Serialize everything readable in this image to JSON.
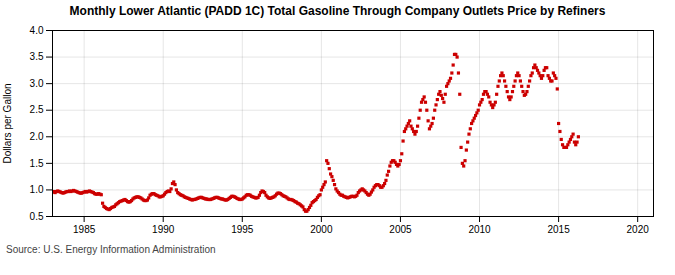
{
  "chart_data": {
    "type": "scatter",
    "title": "Monthly Lower Atlantic (PADD 1C) Total Gasoline Through Company Outlets Price by Refiners",
    "ylabel": "Dollars per Gallon",
    "source": "Source: U.S. Energy Information Administration",
    "color": "#cc0000",
    "marker": "square",
    "grid": true,
    "xlim": [
      1983,
      2021
    ],
    "ylim": [
      0.5,
      4.0
    ],
    "xticks": [
      1985,
      1990,
      1995,
      2000,
      2005,
      2010,
      2015,
      2020
    ],
    "yticks": [
      0.5,
      {
        "value": 1.0,
        "label": "1.0"
      },
      1.5,
      {
        "value": 2.0,
        "label": "2.0"
      },
      2.5,
      {
        "value": 3.0,
        "label": "3.0"
      },
      3.5,
      {
        "value": 4.0,
        "label": "4.0"
      }
    ],
    "x": [
      1983,
      1983.0833333333333,
      1983.1666666666667,
      1983.25,
      1983.3333333333333,
      1983.4166666666667,
      1983.5,
      1983.5833333333333,
      1983.6666666666667,
      1983.75,
      1983.8333333333333,
      1983.9166666666667,
      1984,
      1984.0833333333333,
      1984.1666666666667,
      1984.25,
      1984.3333333333333,
      1984.4166666666667,
      1984.5,
      1984.5833333333333,
      1984.6666666666667,
      1984.75,
      1984.8333333333333,
      1984.9166666666667,
      1985,
      1985.0833333333333,
      1985.1666666666667,
      1985.25,
      1985.3333333333333,
      1985.4166666666667,
      1985.5,
      1985.5833333333333,
      1985.6666666666667,
      1985.75,
      1985.8333333333333,
      1985.9166666666667,
      1986,
      1986.0833333333333,
      1986.1666666666667,
      1986.25,
      1986.3333333333333,
      1986.4166666666667,
      1986.5,
      1986.5833333333333,
      1986.6666666666667,
      1986.75,
      1986.8333333333333,
      1986.9166666666667,
      1987,
      1987.0833333333333,
      1987.1666666666667,
      1987.25,
      1987.3333333333333,
      1987.4166666666667,
      1987.5,
      1987.5833333333333,
      1987.6666666666667,
      1987.75,
      1987.8333333333333,
      1987.9166666666667,
      1988,
      1988.0833333333333,
      1988.1666666666667,
      1988.25,
      1988.3333333333333,
      1988.4166666666667,
      1988.5,
      1988.5833333333333,
      1988.6666666666667,
      1988.75,
      1988.8333333333333,
      1988.9166666666667,
      1989,
      1989.0833333333333,
      1989.1666666666667,
      1989.25,
      1989.3333333333333,
      1989.4166666666667,
      1989.5,
      1989.5833333333333,
      1989.6666666666667,
      1989.75,
      1989.8333333333333,
      1989.9166666666667,
      1990,
      1990.0833333333333,
      1990.1666666666667,
      1990.25,
      1990.3333333333333,
      1990.4166666666667,
      1990.5,
      1990.5833333333333,
      1990.6666666666667,
      1990.75,
      1990.8333333333333,
      1990.9166666666667,
      1991,
      1991.0833333333333,
      1991.1666666666667,
      1991.25,
      1991.3333333333333,
      1991.4166666666667,
      1991.5,
      1991.5833333333333,
      1991.6666666666667,
      1991.75,
      1991.8333333333333,
      1991.9166666666667,
      1992,
      1992.0833333333333,
      1992.1666666666667,
      1992.25,
      1992.3333333333333,
      1992.4166666666667,
      1992.5,
      1992.5833333333333,
      1992.6666666666667,
      1992.75,
      1992.8333333333333,
      1992.9166666666667,
      1993,
      1993.0833333333333,
      1993.1666666666667,
      1993.25,
      1993.3333333333333,
      1993.4166666666667,
      1993.5,
      1993.5833333333333,
      1993.6666666666667,
      1993.75,
      1993.8333333333333,
      1993.9166666666667,
      1994,
      1994.0833333333333,
      1994.1666666666667,
      1994.25,
      1994.3333333333333,
      1994.4166666666667,
      1994.5,
      1994.5833333333333,
      1994.6666666666667,
      1994.75,
      1994.8333333333333,
      1994.9166666666667,
      1995,
      1995.0833333333333,
      1995.1666666666667,
      1995.25,
      1995.3333333333333,
      1995.4166666666667,
      1995.5,
      1995.5833333333333,
      1995.6666666666667,
      1995.75,
      1995.8333333333333,
      1995.9166666666667,
      1996,
      1996.0833333333333,
      1996.1666666666667,
      1996.25,
      1996.3333333333333,
      1996.4166666666667,
      1996.5,
      1996.5833333333333,
      1996.6666666666667,
      1996.75,
      1996.8333333333333,
      1996.9166666666667,
      1997,
      1997.0833333333333,
      1997.1666666666667,
      1997.25,
      1997.3333333333333,
      1997.4166666666667,
      1997.5,
      1997.5833333333333,
      1997.6666666666667,
      1997.75,
      1997.8333333333333,
      1997.9166666666667,
      1998,
      1998.0833333333333,
      1998.1666666666667,
      1998.25,
      1998.3333333333333,
      1998.4166666666667,
      1998.5,
      1998.5833333333333,
      1998.6666666666667,
      1998.75,
      1998.8333333333333,
      1998.9166666666667,
      1999,
      1999.0833333333333,
      1999.1666666666667,
      1999.25,
      1999.3333333333333,
      1999.4166666666667,
      1999.5,
      1999.5833333333333,
      1999.6666666666667,
      1999.75,
      1999.8333333333333,
      1999.9166666666667,
      2000,
      2000.0833333333333,
      2000.1666666666667,
      2000.25,
      2000.3333333333333,
      2000.4166666666667,
      2000.5,
      2000.5833333333333,
      2000.6666666666667,
      2000.75,
      2000.8333333333333,
      2000.9166666666667,
      2001,
      2001.0833333333333,
      2001.1666666666667,
      2001.25,
      2001.3333333333333,
      2001.4166666666667,
      2001.5,
      2001.5833333333333,
      2001.6666666666667,
      2001.75,
      2001.8333333333333,
      2001.9166666666667,
      2002,
      2002.0833333333333,
      2002.1666666666667,
      2002.25,
      2002.3333333333333,
      2002.4166666666667,
      2002.5,
      2002.5833333333333,
      2002.6666666666667,
      2002.75,
      2002.8333333333333,
      2002.9166666666667,
      2003,
      2003.0833333333333,
      2003.1666666666667,
      2003.25,
      2003.3333333333333,
      2003.4166666666667,
      2003.5,
      2003.5833333333333,
      2003.6666666666667,
      2003.75,
      2003.8333333333333,
      2003.9166666666667,
      2004,
      2004.0833333333333,
      2004.1666666666667,
      2004.25,
      2004.3333333333333,
      2004.4166666666667,
      2004.5,
      2004.5833333333333,
      2004.6666666666667,
      2004.75,
      2004.8333333333333,
      2004.9166666666667,
      2005,
      2005.0833333333333,
      2005.1666666666667,
      2005.25,
      2005.3333333333333,
      2005.4166666666667,
      2005.5,
      2005.5833333333333,
      2005.6666666666667,
      2005.75,
      2005.8333333333333,
      2005.9166666666667,
      2006,
      2006.0833333333333,
      2006.1666666666667,
      2006.25,
      2006.3333333333333,
      2006.4166666666667,
      2006.5,
      2006.5833333333333,
      2006.6666666666667,
      2006.75,
      2006.8333333333333,
      2006.9166666666667,
      2007,
      2007.0833333333333,
      2007.1666666666667,
      2007.25,
      2007.3333333333333,
      2007.4166666666667,
      2007.5,
      2007.5833333333333,
      2007.6666666666667,
      2007.75,
      2007.8333333333333,
      2007.9166666666667,
      2008,
      2008.0833333333333,
      2008.1666666666667,
      2008.25,
      2008.3333333333333,
      2008.4166666666667,
      2008.5,
      2008.5833333333333,
      2008.6666666666667,
      2008.75,
      2008.8333333333333,
      2008.9166666666667,
      2009,
      2009.0833333333333,
      2009.1666666666667,
      2009.25,
      2009.3333333333333,
      2009.4166666666667,
      2009.5,
      2009.5833333333333,
      2009.6666666666667,
      2009.75,
      2009.8333333333333,
      2009.9166666666667,
      2010,
      2010.0833333333333,
      2010.1666666666667,
      2010.25,
      2010.3333333333333,
      2010.4166666666667,
      2010.5,
      2010.5833333333333,
      2010.6666666666667,
      2010.75,
      2010.8333333333333,
      2010.9166666666667,
      2011,
      2011.0833333333333,
      2011.1666666666667,
      2011.25,
      2011.3333333333333,
      2011.4166666666667,
      2011.5,
      2011.5833333333333,
      2011.6666666666667,
      2011.75,
      2011.8333333333333,
      2011.9166666666667,
      2012,
      2012.0833333333333,
      2012.1666666666667,
      2012.25,
      2012.3333333333333,
      2012.4166666666667,
      2012.5,
      2012.5833333333333,
      2012.6666666666667,
      2012.75,
      2012.8333333333333,
      2012.9166666666667,
      2013,
      2013.0833333333333,
      2013.1666666666667,
      2013.25,
      2013.3333333333333,
      2013.4166666666667,
      2013.5,
      2013.5833333333333,
      2013.6666666666667,
      2013.75,
      2013.8333333333333,
      2013.9166666666667,
      2014,
      2014.0833333333333,
      2014.1666666666667,
      2014.25,
      2014.3333333333333,
      2014.4166666666667,
      2014.5,
      2014.5833333333333,
      2014.6666666666667,
      2014.75,
      2014.8333333333333,
      2014.9166666666667,
      2015,
      2015.0833333333333,
      2015.1666666666667,
      2015.25,
      2015.3333333333333,
      2015.4166666666667,
      2015.5,
      2015.5833333333333,
      2015.6666666666667,
      2015.75,
      2015.8333333333333,
      2015.9166666666667,
      2016,
      2016.0833333333333,
      2016.1666666666667,
      2016.25
    ],
    "values": [
      0.96,
      0.97,
      0.95,
      0.97,
      0.98,
      0.97,
      0.96,
      0.95,
      0.94,
      0.95,
      0.96,
      0.97,
      0.97,
      0.98,
      0.97,
      0.98,
      0.99,
      0.98,
      0.97,
      0.96,
      0.95,
      0.94,
      0.94,
      0.95,
      0.96,
      0.97,
      0.96,
      0.97,
      0.98,
      0.97,
      0.96,
      0.95,
      0.93,
      0.92,
      0.92,
      0.93,
      0.92,
      0.91,
      0.75,
      0.69,
      0.67,
      0.65,
      0.64,
      0.63,
      0.65,
      0.67,
      0.68,
      0.69,
      0.72,
      0.74,
      0.76,
      0.78,
      0.79,
      0.8,
      0.81,
      0.82,
      0.8,
      0.78,
      0.77,
      0.78,
      0.8,
      0.83,
      0.85,
      0.86,
      0.87,
      0.87,
      0.86,
      0.85,
      0.83,
      0.81,
      0.8,
      0.8,
      0.81,
      0.85,
      0.9,
      0.92,
      0.93,
      0.93,
      0.91,
      0.9,
      0.89,
      0.87,
      0.87,
      0.88,
      0.89,
      0.92,
      0.95,
      0.97,
      0.98,
      0.97,
      1.02,
      1.12,
      1.15,
      1.1,
      1.0,
      0.95,
      0.93,
      0.91,
      0.9,
      0.89,
      0.87,
      0.86,
      0.85,
      0.84,
      0.83,
      0.82,
      0.81,
      0.82,
      0.82,
      0.83,
      0.84,
      0.85,
      0.86,
      0.86,
      0.85,
      0.84,
      0.83,
      0.83,
      0.82,
      0.82,
      0.82,
      0.83,
      0.84,
      0.85,
      0.86,
      0.86,
      0.85,
      0.84,
      0.83,
      0.83,
      0.82,
      0.81,
      0.81,
      0.82,
      0.84,
      0.86,
      0.88,
      0.88,
      0.87,
      0.86,
      0.84,
      0.83,
      0.82,
      0.82,
      0.83,
      0.85,
      0.87,
      0.9,
      0.91,
      0.91,
      0.9,
      0.88,
      0.87,
      0.86,
      0.85,
      0.85,
      0.86,
      0.9,
      0.95,
      0.98,
      0.97,
      0.95,
      0.9,
      0.87,
      0.85,
      0.84,
      0.85,
      0.86,
      0.87,
      0.89,
      0.92,
      0.94,
      0.94,
      0.93,
      0.91,
      0.89,
      0.88,
      0.87,
      0.85,
      0.83,
      0.82,
      0.82,
      0.81,
      0.8,
      0.78,
      0.77,
      0.75,
      0.74,
      0.72,
      0.7,
      0.68,
      0.63,
      0.6,
      0.6,
      0.63,
      0.67,
      0.71,
      0.76,
      0.78,
      0.8,
      0.82,
      0.86,
      0.89,
      0.91,
      1.0,
      1.05,
      1.1,
      1.15,
      1.55,
      1.5,
      1.4,
      1.3,
      1.25,
      1.18,
      1.1,
      1.02,
      0.98,
      0.95,
      0.92,
      0.9,
      0.9,
      0.88,
      0.87,
      0.86,
      0.85,
      0.86,
      0.87,
      0.88,
      0.88,
      0.87,
      0.88,
      0.9,
      0.95,
      0.98,
      1.0,
      1.02,
      1.0,
      0.98,
      0.95,
      0.92,
      0.9,
      0.92,
      0.96,
      1.0,
      1.05,
      1.08,
      1.1,
      1.1,
      1.08,
      1.05,
      1.05,
      1.08,
      1.12,
      1.18,
      1.28,
      1.35,
      1.45,
      1.52,
      1.55,
      1.55,
      1.52,
      1.48,
      1.45,
      1.48,
      1.55,
      1.68,
      1.92,
      2.1,
      2.15,
      2.2,
      2.25,
      2.3,
      2.2,
      2.15,
      2.1,
      2.05,
      2.1,
      2.2,
      2.35,
      2.5,
      2.65,
      2.7,
      2.75,
      2.65,
      2.5,
      2.3,
      2.15,
      2.2,
      2.25,
      2.35,
      2.5,
      2.6,
      2.7,
      2.8,
      2.85,
      2.78,
      2.72,
      2.65,
      2.8,
      2.95,
      3.0,
      3.05,
      3.1,
      3.2,
      3.35,
      3.55,
      3.55,
      3.5,
      3.2,
      2.8,
      1.8,
      1.5,
      1.45,
      1.55,
      1.75,
      1.9,
      2.05,
      2.15,
      2.25,
      2.3,
      2.35,
      2.4,
      2.45,
      2.5,
      2.6,
      2.65,
      2.7,
      2.8,
      2.85,
      2.85,
      2.8,
      2.75,
      2.65,
      2.6,
      2.55,
      2.6,
      2.65,
      2.8,
      2.95,
      3.05,
      3.15,
      3.2,
      3.15,
      3.05,
      2.95,
      2.85,
      2.75,
      2.7,
      2.75,
      2.85,
      2.95,
      3.05,
      3.15,
      3.2,
      3.15,
      3.05,
      2.95,
      2.85,
      2.78,
      2.8,
      2.85,
      2.95,
      3.05,
      3.15,
      3.2,
      3.3,
      3.35,
      3.3,
      3.25,
      3.2,
      3.15,
      3.1,
      3.15,
      3.25,
      3.3,
      3.3,
      3.15,
      3.1,
      3.05,
      3.05,
      3.2,
      3.15,
      3.1,
      2.9,
      2.25,
      2.1,
      1.95,
      1.85,
      1.8,
      1.8,
      1.8,
      1.85,
      1.9,
      1.95,
      2.0,
      2.05,
      1.9,
      1.85,
      1.9,
      2.0
    ]
  }
}
